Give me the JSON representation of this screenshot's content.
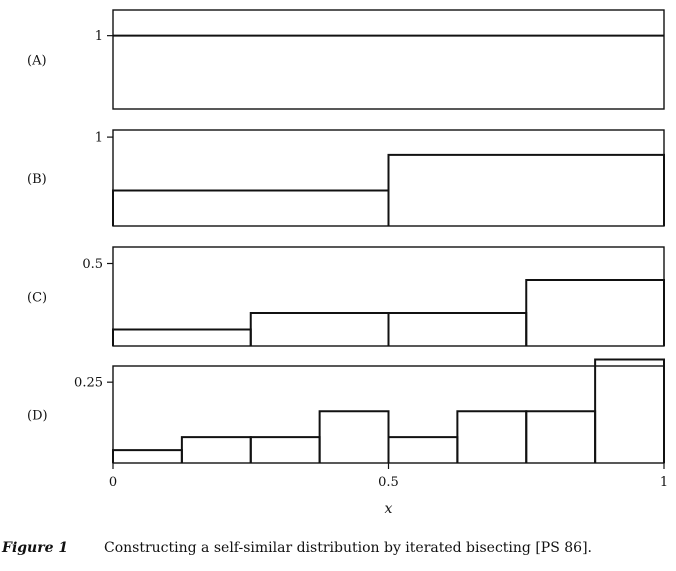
{
  "chart_data": {
    "type": "bar",
    "description_type": "step",
    "x_domain": [
      0,
      1
    ],
    "x_ticks": [
      "0",
      "0.5",
      "1"
    ],
    "xlabel": "x",
    "panels": [
      {
        "label": "(A)",
        "y_tick": "1",
        "y_tick_value": 1,
        "ylim": [
          0,
          1.35
        ],
        "segments": [
          {
            "x0": 0,
            "x1": 1,
            "y": 1
          }
        ]
      },
      {
        "label": "(B)",
        "y_tick": "1",
        "y_tick_value": 1,
        "ylim": [
          0,
          1.08
        ],
        "segments": [
          {
            "x0": 0,
            "x1": 0.5,
            "y": 0.4
          },
          {
            "x0": 0.5,
            "x1": 1,
            "y": 0.8
          }
        ]
      },
      {
        "label": "(C)",
        "y_tick": "0.5",
        "y_tick_value": 0.5,
        "ylim": [
          0,
          0.6
        ],
        "segments": [
          {
            "x0": 0,
            "x1": 0.25,
            "y": 0.1
          },
          {
            "x0": 0.25,
            "x1": 0.5,
            "y": 0.2
          },
          {
            "x0": 0.5,
            "x1": 0.75,
            "y": 0.2
          },
          {
            "x0": 0.75,
            "x1": 1,
            "y": 0.4
          }
        ]
      },
      {
        "label": "(D)",
        "y_tick": "0.25",
        "y_tick_value": 0.25,
        "ylim": [
          0,
          0.3
        ],
        "segments": [
          {
            "x0": 0,
            "x1": 0.125,
            "y": 0.04
          },
          {
            "x0": 0.125,
            "x1": 0.25,
            "y": 0.08
          },
          {
            "x0": 0.25,
            "x1": 0.375,
            "y": 0.08
          },
          {
            "x0": 0.375,
            "x1": 0.5,
            "y": 0.16
          },
          {
            "x0": 0.5,
            "x1": 0.625,
            "y": 0.08
          },
          {
            "x0": 0.625,
            "x1": 0.75,
            "y": 0.16
          },
          {
            "x0": 0.75,
            "x1": 0.875,
            "y": 0.16
          },
          {
            "x0": 0.875,
            "x1": 1,
            "y": 0.32
          }
        ]
      }
    ]
  },
  "caption": {
    "label": "Figure 1",
    "text": "Constructing a self-similar distribution by iterated bisecting [PS 86]."
  }
}
